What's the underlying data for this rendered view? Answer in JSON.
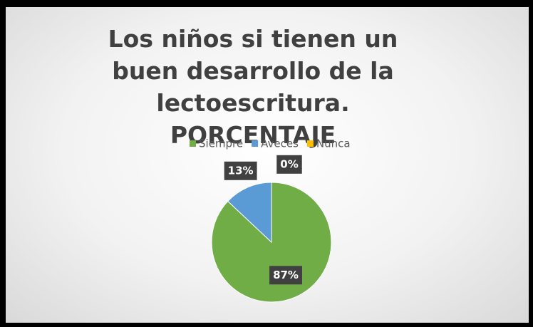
{
  "chart_data": {
    "type": "pie",
    "title": "Los niños si tienen un buen desarrollo de la lectoescritura. PORCENTAJE",
    "categories": [
      "Siempre",
      "Aveces",
      "Nunca"
    ],
    "values": [
      87,
      13,
      0
    ],
    "value_labels": [
      "87%",
      "13%",
      "0%"
    ],
    "colors": [
      "#70ad47",
      "#5b9bd5",
      "#ffc000"
    ],
    "legend": "top"
  }
}
